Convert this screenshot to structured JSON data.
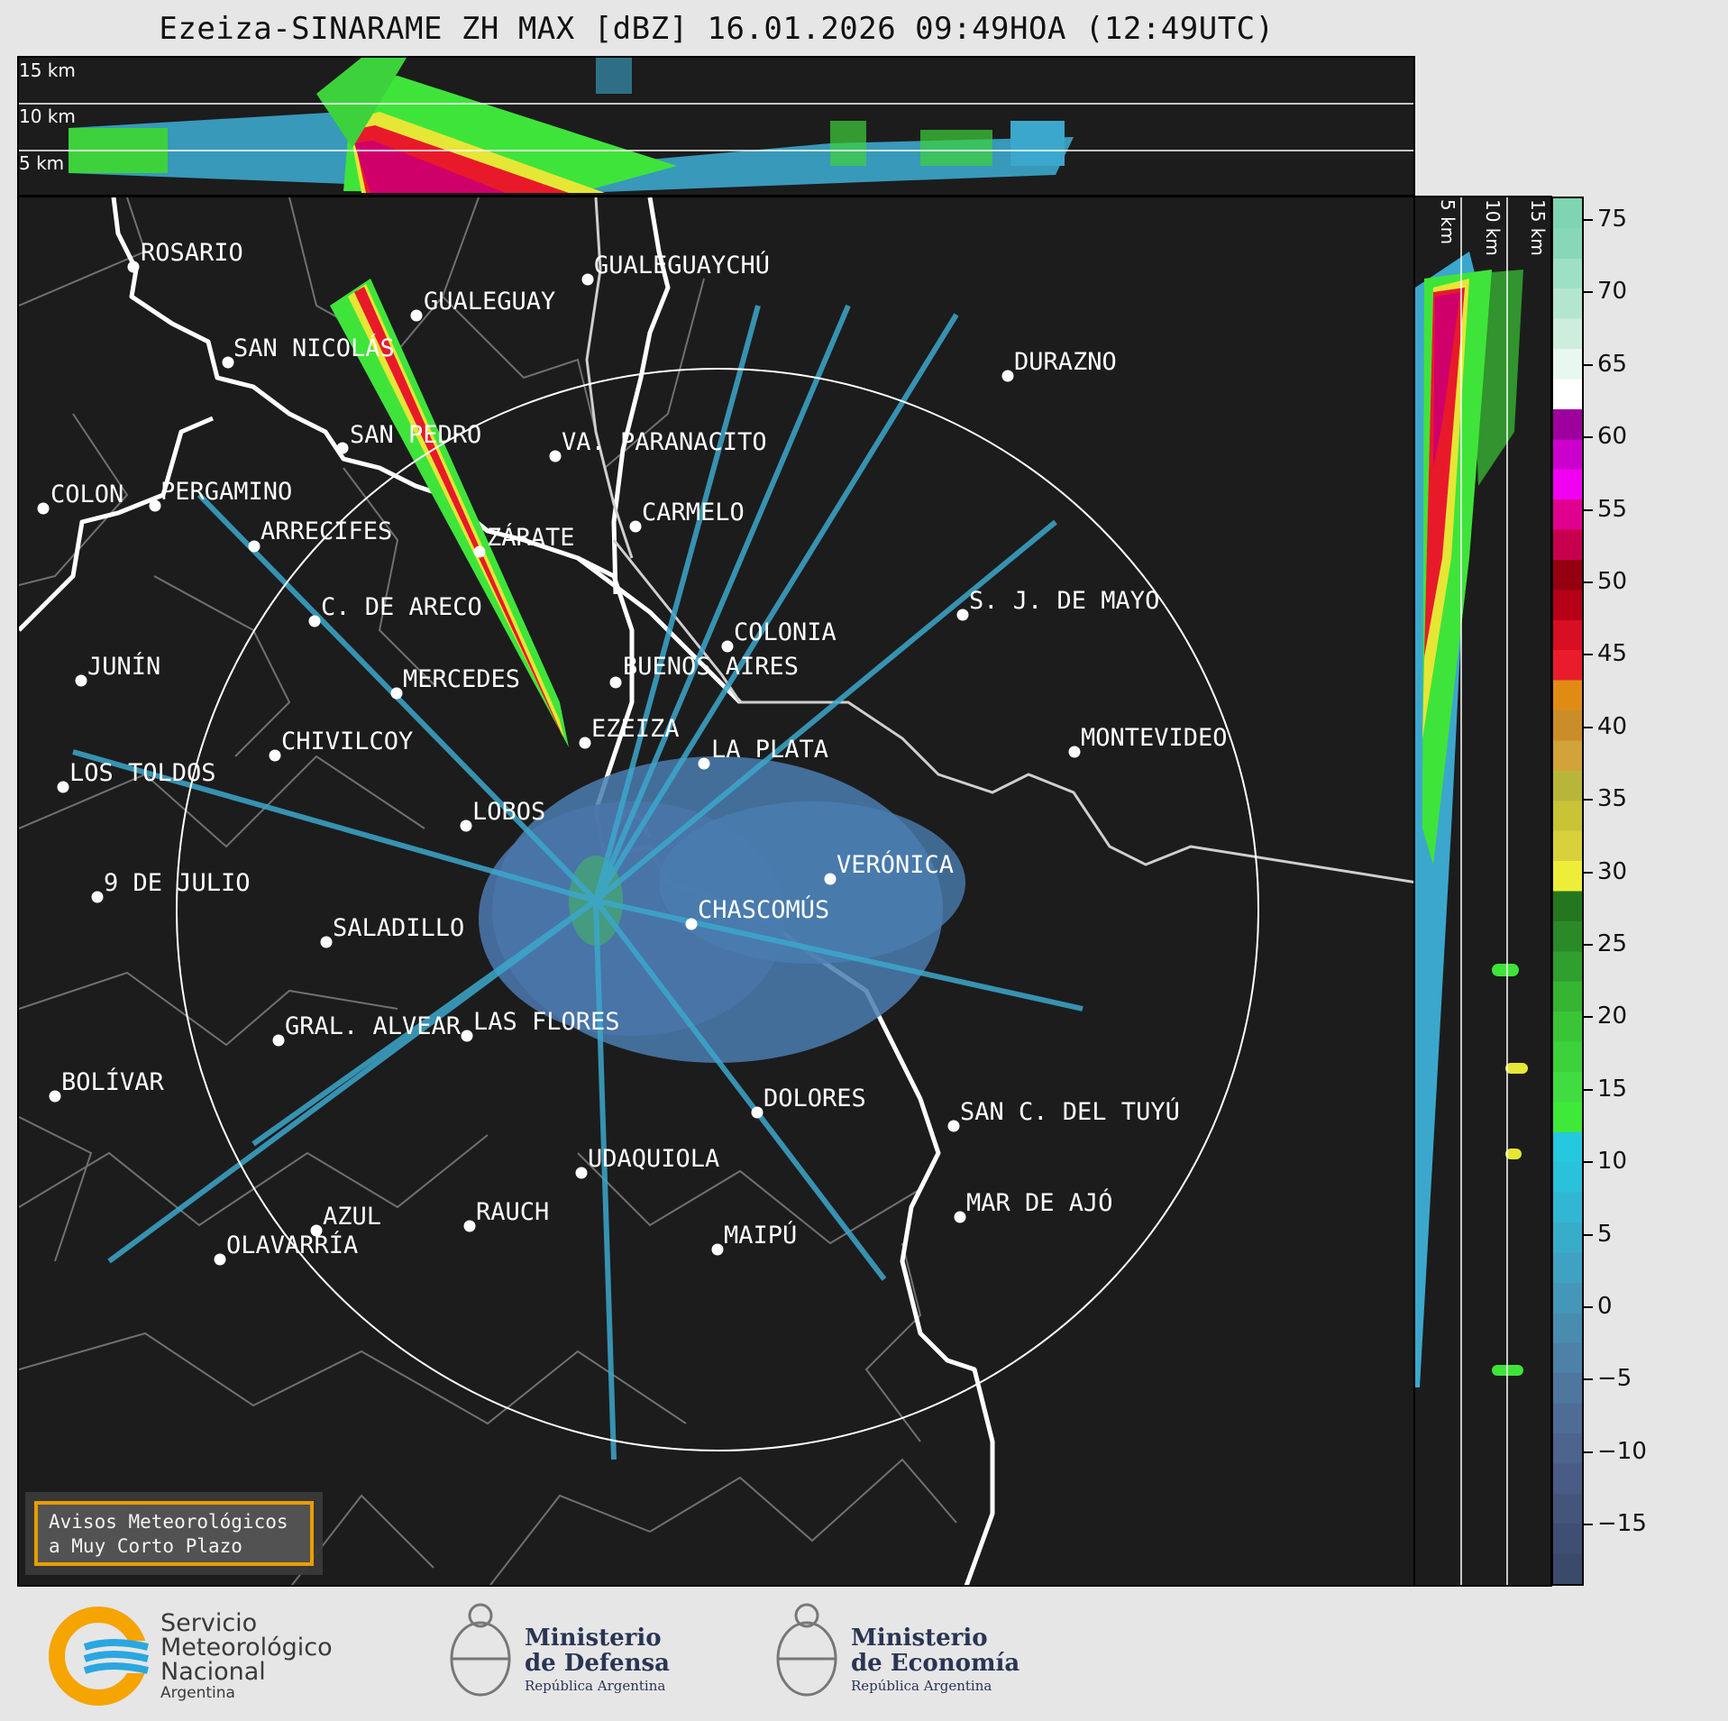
{
  "title": "Ezeiza-SINARAME ZH MAX [dBZ] 16.01.2026 09:49HOA (12:49UTC)",
  "height_labels": [
    "15 km",
    "10 km",
    "5 km"
  ],
  "colorbar": {
    "ticks": [
      "75",
      "70",
      "65",
      "60",
      "55",
      "50",
      "45",
      "40",
      "35",
      "30",
      "25",
      "20",
      "15",
      "10",
      "5",
      "0",
      "−5",
      "−10",
      "−15"
    ],
    "colors": [
      "#3b4a6b",
      "#3f4f73",
      "#44557c",
      "#485c85",
      "#4d648e",
      "#4f6c96",
      "#4f769e",
      "#4d81a7",
      "#4a8cb0",
      "#4597b9",
      "#3fa2c2",
      "#38adca",
      "#31b7d3",
      "#2ac1db",
      "#26c8df",
      "#3ee93a",
      "#41dc42",
      "#3dd23b",
      "#3ac536",
      "#35b531",
      "#2f9f2d",
      "#2a8a28",
      "#25771f",
      "#eeee3a",
      "#d9d13b",
      "#c9c336",
      "#b8b63a",
      "#d1a338",
      "#c98d2a",
      "#e08c14",
      "#ea1c2c",
      "#d80e22",
      "#b60016",
      "#950010",
      "#c7004e",
      "#e00090",
      "#f200f2",
      "#cc00cc",
      "#9d009d",
      "#ffffff",
      "#e8f7f0",
      "#cdeedd",
      "#b4e6cf",
      "#9ee0c4",
      "#88d8b8",
      "#7fd4b2"
    ]
  },
  "cities": [
    {
      "name": "ROSARIO"
    },
    {
      "name": "GUALEGUAYCHÚ"
    },
    {
      "name": "GUALEGUAY"
    },
    {
      "name": "SAN NICOLÁS"
    },
    {
      "name": "DURAZNO"
    },
    {
      "name": "SAN PEDRO"
    },
    {
      "name": "VA. PARANACITO"
    },
    {
      "name": "COLON"
    },
    {
      "name": "PERGAMINO"
    },
    {
      "name": "CARMELO"
    },
    {
      "name": "ARRECIFES"
    },
    {
      "name": "ZÁRATE"
    },
    {
      "name": "S. J. DE MAYO"
    },
    {
      "name": "C. DE ARECO"
    },
    {
      "name": "COLONIA"
    },
    {
      "name": "JUNÍN"
    },
    {
      "name": "BUENOS AIRES"
    },
    {
      "name": "MERCEDES"
    },
    {
      "name": "EZEIZA"
    },
    {
      "name": "MONTEVIDEO"
    },
    {
      "name": "CHIVILCOY"
    },
    {
      "name": "LA PLATA"
    },
    {
      "name": "LOS TOLDOS"
    },
    {
      "name": "LOBOS"
    },
    {
      "name": "VERÓNICA"
    },
    {
      "name": "9 DE JULIO"
    },
    {
      "name": "CHASCOMÚS"
    },
    {
      "name": "SALADILLO"
    },
    {
      "name": "GRAL. ALVEAR"
    },
    {
      "name": "LAS FLORES"
    },
    {
      "name": "BOLÍVAR"
    },
    {
      "name": "DOLORES"
    },
    {
      "name": "SAN C. DEL TUYÚ"
    },
    {
      "name": "UDAQUIOLA"
    },
    {
      "name": "MAR DE AJÓ"
    },
    {
      "name": "AZUL"
    },
    {
      "name": "RAUCH"
    },
    {
      "name": "OLAVARRÍA"
    },
    {
      "name": "MAIPÚ"
    }
  ],
  "avisos": {
    "line1": "Avisos Meteorológicos",
    "line2": "a Muy Corto Plazo"
  },
  "logos": {
    "smn": {
      "line1": "Servicio",
      "line2": "Meteorológico",
      "line3": "Nacional",
      "line4": "Argentina"
    },
    "defensa": {
      "line1": "Ministerio",
      "line2": "de Defensa",
      "line3": "República Argentina"
    },
    "economia": {
      "line1": "Ministerio",
      "line2": "de Economía",
      "line3": "República Argentina"
    }
  }
}
